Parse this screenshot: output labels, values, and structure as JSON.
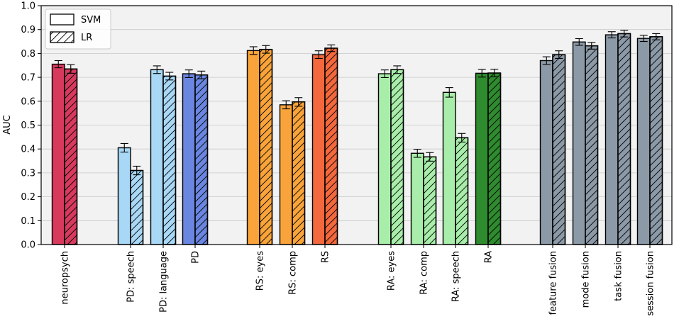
{
  "chart_data": {
    "type": "bar",
    "title": "",
    "xlabel": "",
    "ylabel": "AUC",
    "ylim": [
      0.0,
      1.0
    ],
    "yticks": [
      0.0,
      0.1,
      0.2,
      0.3,
      0.4,
      0.5,
      0.6,
      0.7,
      0.8,
      0.9,
      1.0
    ],
    "grid": "horizontal",
    "legend_position": "top-left",
    "legend": [
      {
        "name": "SVM",
        "pattern": "solid"
      },
      {
        "name": "LR",
        "pattern": "hatched"
      }
    ],
    "groups": [
      {
        "label": "neuropsych",
        "color": "#d83a5e",
        "svm": 0.755,
        "svm_err": 0.015,
        "lr": 0.735,
        "lr_err": 0.018
      },
      {
        "label": "PD: speech",
        "color": "#a8d8f5",
        "svm": 0.405,
        "svm_err": 0.018,
        "lr": 0.31,
        "lr_err": 0.018
      },
      {
        "label": "PD: language",
        "color": "#a8d8f5",
        "svm": 0.732,
        "svm_err": 0.016,
        "lr": 0.705,
        "lr_err": 0.016
      },
      {
        "label": "PD",
        "color": "#6a86e0",
        "svm": 0.715,
        "svm_err": 0.016,
        "lr": 0.71,
        "lr_err": 0.016
      },
      {
        "label": "RS: eyes",
        "color": "#f9a43a",
        "svm": 0.812,
        "svm_err": 0.016,
        "lr": 0.817,
        "lr_err": 0.016
      },
      {
        "label": "RS: comp",
        "color": "#f9a43a",
        "svm": 0.585,
        "svm_err": 0.017,
        "lr": 0.597,
        "lr_err": 0.018
      },
      {
        "label": "RS",
        "color": "#f3683c",
        "svm": 0.795,
        "svm_err": 0.016,
        "lr": 0.822,
        "lr_err": 0.014
      },
      {
        "label": "RA: eyes",
        "color": "#a8eeaa",
        "svm": 0.715,
        "svm_err": 0.016,
        "lr": 0.732,
        "lr_err": 0.016
      },
      {
        "label": "RA: comp",
        "color": "#a8eeaa",
        "svm": 0.382,
        "svm_err": 0.017,
        "lr": 0.367,
        "lr_err": 0.018
      },
      {
        "label": "RA: speech",
        "color": "#a8eeaa",
        "svm": 0.637,
        "svm_err": 0.02,
        "lr": 0.447,
        "lr_err": 0.018
      },
      {
        "label": "RA",
        "color": "#2e8b2e",
        "svm": 0.717,
        "svm_err": 0.016,
        "lr": 0.718,
        "lr_err": 0.016
      },
      {
        "label": "feature fusion",
        "color": "#8c99a6",
        "svm": 0.77,
        "svm_err": 0.016,
        "lr": 0.795,
        "lr_err": 0.016
      },
      {
        "label": "mode fusion",
        "color": "#8c99a6",
        "svm": 0.848,
        "svm_err": 0.014,
        "lr": 0.832,
        "lr_err": 0.014
      },
      {
        "label": "task fusion",
        "color": "#8c99a6",
        "svm": 0.878,
        "svm_err": 0.013,
        "lr": 0.883,
        "lr_err": 0.014
      },
      {
        "label": "session fusion",
        "color": "#8c99a6",
        "svm": 0.863,
        "svm_err": 0.013,
        "lr": 0.87,
        "lr_err": 0.013
      }
    ]
  }
}
